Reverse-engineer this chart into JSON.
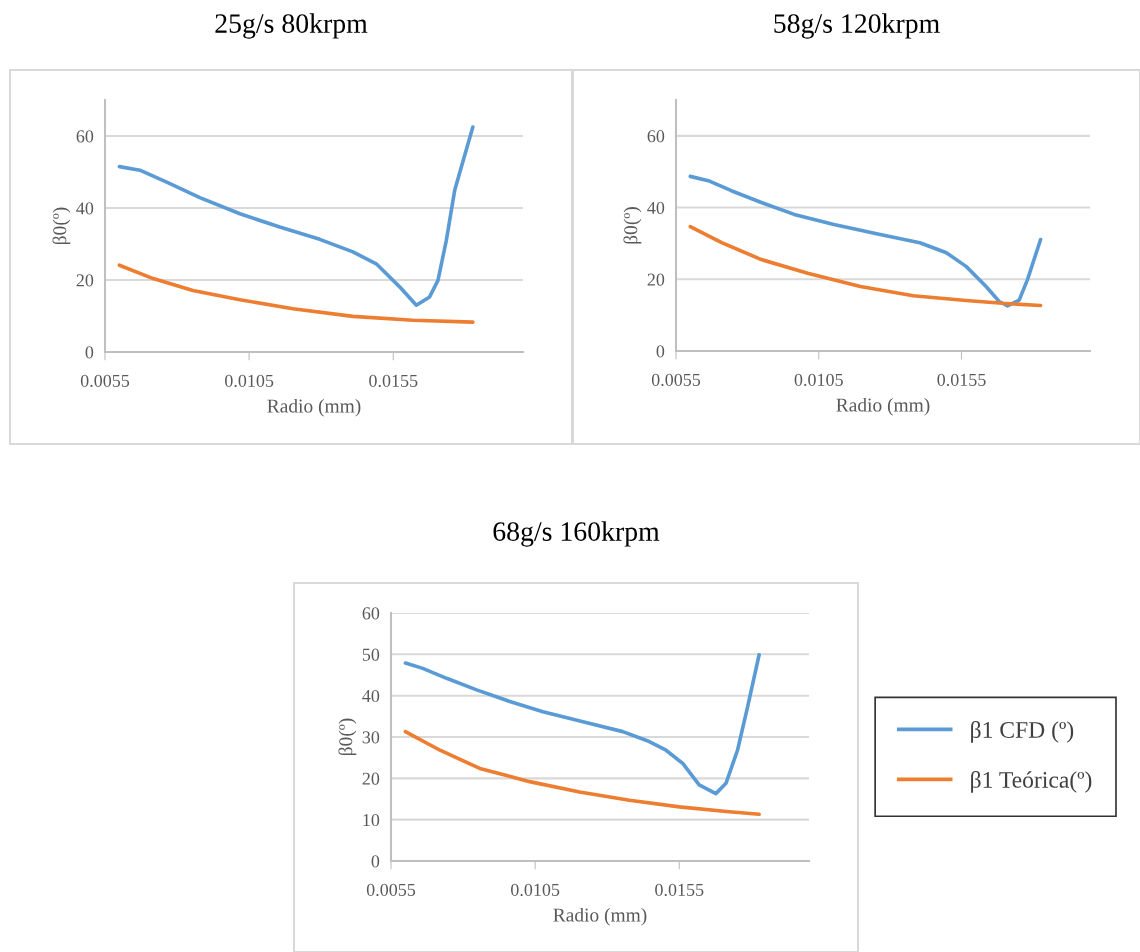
{
  "chart_data": [
    {
      "type": "line",
      "title": "25g/s 80krpm",
      "xlabel": "Radio (mm)",
      "ylabel": "β0(º)",
      "xlim": [
        0.0055,
        0.02
      ],
      "xticks": [
        0.0055,
        0.0105,
        0.0155
      ],
      "ylim": [
        0,
        70
      ],
      "yticks": [
        0,
        20,
        40,
        60
      ],
      "grid": "y",
      "series": [
        {
          "color": "#5b9bd5",
          "x": [
            0.006,
            0.00671,
            0.00764,
            0.00879,
            0.01018,
            0.01156,
            0.01295,
            0.0141,
            0.01491,
            0.01572,
            0.0163,
            0.01676,
            0.01705,
            0.01734,
            0.01763,
            0.01826
          ],
          "values": [
            51.5,
            50.5,
            47.2,
            42.9,
            38.4,
            34.7,
            31.3,
            27.8,
            24.5,
            18.1,
            13.0,
            15.3,
            19.9,
            31.0,
            44.9,
            62.5
          ]
        },
        {
          "color": "#ed7d31",
          "x": [
            0.006,
            0.00717,
            0.00855,
            0.01018,
            0.01202,
            0.0141,
            0.01618,
            0.01826
          ],
          "values": [
            24.1,
            20.4,
            17.1,
            14.5,
            12.0,
            9.9,
            8.8,
            8.3
          ]
        }
      ]
    },
    {
      "type": "line",
      "title": "58g/s 120krpm",
      "xlabel": "Radio (mm)",
      "ylabel": "β0(º)",
      "xlim": [
        0.0055,
        0.02
      ],
      "xticks": [
        0.0055,
        0.0105,
        0.0155
      ],
      "ylim": [
        0,
        70
      ],
      "yticks": [
        0,
        20,
        40,
        60
      ],
      "grid": "y",
      "series": [
        {
          "color": "#5b9bd5",
          "x": [
            0.006,
            0.00663,
            0.00744,
            0.00849,
            0.00964,
            0.01103,
            0.01265,
            0.01404,
            0.01497,
            0.01566,
            0.01636,
            0.01682,
            0.01711,
            0.01752,
            0.01781,
            0.01827
          ],
          "values": [
            48.7,
            47.5,
            44.7,
            41.4,
            38.1,
            35.3,
            32.5,
            30.2,
            27.4,
            23.6,
            18.0,
            13.8,
            12.6,
            14.2,
            19.9,
            31.1
          ]
        },
        {
          "color": "#ed7d31",
          "x": [
            0.006,
            0.0071,
            0.00849,
            0.01011,
            0.01196,
            0.01381,
            0.01566,
            0.01693,
            0.01827
          ],
          "values": [
            34.7,
            30.2,
            25.5,
            21.7,
            18.0,
            15.4,
            14.1,
            13.3,
            12.7
          ]
        }
      ]
    },
    {
      "type": "line",
      "title": "68g/s 160krpm",
      "xlabel": "Radio (mm)",
      "ylabel": "β0(º)",
      "xlim": [
        0.0055,
        0.02
      ],
      "xticks": [
        0.0055,
        0.0105,
        0.0155
      ],
      "ylim": [
        0,
        60
      ],
      "yticks": [
        0,
        10,
        20,
        30,
        40,
        50,
        60
      ],
      "grid": "y",
      "legend": "right",
      "series": [
        {
          "name": "β1 CFD (º)",
          "color": "#5b9bd5",
          "x": [
            0.006,
            0.0066,
            0.00743,
            0.00847,
            0.00962,
            0.01077,
            0.01216,
            0.01354,
            0.01446,
            0.01504,
            0.01562,
            0.01619,
            0.01677,
            0.01712,
            0.01752,
            0.01787,
            0.01827
          ],
          "values": [
            47.9,
            46.6,
            44.2,
            41.4,
            38.6,
            36.1,
            33.7,
            31.3,
            28.9,
            26.8,
            23.6,
            18.4,
            16.3,
            18.8,
            26.8,
            37.3,
            49.9
          ]
        },
        {
          "name": "β1 Teórica(º)",
          "color": "#ed7d31",
          "x": [
            0.006,
            0.0072,
            0.00858,
            0.01031,
            0.01204,
            0.01377,
            0.0155,
            0.01723,
            0.01827
          ],
          "values": [
            31.3,
            26.8,
            22.4,
            19.2,
            16.7,
            14.7,
            13.1,
            11.9,
            11.3
          ]
        }
      ]
    }
  ]
}
